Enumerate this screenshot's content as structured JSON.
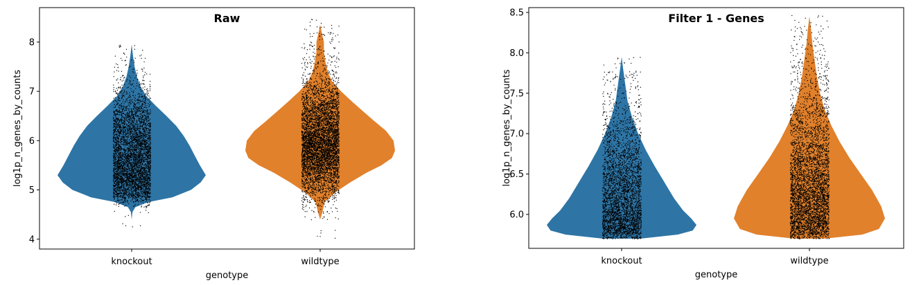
{
  "chart_data": [
    {
      "type": "violin",
      "title": "Raw",
      "xlabel": "genotype",
      "ylabel": "log1p_n_genes_by_counts",
      "categories": [
        "knockout",
        "wildtype"
      ],
      "yticks": [
        "4",
        "5",
        "6",
        "7",
        "8"
      ],
      "ylim": [
        3.8,
        8.7
      ],
      "series": [
        {
          "category": "knockout",
          "color": "#2e75a6",
          "min": 4.4,
          "max": 7.95,
          "mode": 5.25,
          "profile": [
            [
              4.4,
              0.0
            ],
            [
              4.55,
              0.01
            ],
            [
              4.65,
              0.05
            ],
            [
              4.75,
              0.22
            ],
            [
              4.85,
              0.55
            ],
            [
              5.0,
              0.8
            ],
            [
              5.15,
              0.93
            ],
            [
              5.3,
              1.0
            ],
            [
              5.5,
              0.92
            ],
            [
              5.7,
              0.85
            ],
            [
              5.9,
              0.78
            ],
            [
              6.1,
              0.7
            ],
            [
              6.3,
              0.6
            ],
            [
              6.5,
              0.47
            ],
            [
              6.7,
              0.33
            ],
            [
              6.9,
              0.2
            ],
            [
              7.1,
              0.12
            ],
            [
              7.3,
              0.07
            ],
            [
              7.5,
              0.04
            ],
            [
              7.7,
              0.02
            ],
            [
              7.95,
              0.0
            ]
          ],
          "points_range": [
            4.25,
            7.95
          ]
        },
        {
          "category": "wildtype",
          "color": "#e1812c",
          "min": 4.4,
          "max": 8.35,
          "mode": 5.9,
          "profile": [
            [
              4.4,
              0.0
            ],
            [
              4.55,
              0.03
            ],
            [
              4.75,
              0.06
            ],
            [
              4.95,
              0.2
            ],
            [
              5.15,
              0.4
            ],
            [
              5.35,
              0.62
            ],
            [
              5.5,
              0.82
            ],
            [
              5.65,
              0.96
            ],
            [
              5.8,
              1.0
            ],
            [
              6.0,
              0.98
            ],
            [
              6.2,
              0.88
            ],
            [
              6.4,
              0.72
            ],
            [
              6.6,
              0.57
            ],
            [
              6.8,
              0.42
            ],
            [
              7.0,
              0.28
            ],
            [
              7.2,
              0.16
            ],
            [
              7.4,
              0.1
            ],
            [
              7.6,
              0.07
            ],
            [
              7.8,
              0.05
            ],
            [
              8.0,
              0.05
            ],
            [
              8.2,
              0.02
            ],
            [
              8.35,
              0.0
            ]
          ],
          "points_range": [
            3.98,
            8.47
          ]
        }
      ]
    },
    {
      "type": "violin",
      "title": "Filter 1 - Genes",
      "xlabel": "genotype",
      "ylabel": "log1p_n_genes_by_counts",
      "categories": [
        "knockout",
        "wildtype"
      ],
      "yticks": [
        "6.0",
        "6.5",
        "7.0",
        "7.5",
        "8.0",
        "8.5"
      ],
      "ylim": [
        5.58,
        8.56
      ],
      "series": [
        {
          "category": "knockout",
          "color": "#2e75a6",
          "min": 5.7,
          "max": 7.95,
          "mode": 5.85,
          "profile": [
            [
              5.7,
              0.25
            ],
            [
              5.75,
              0.75
            ],
            [
              5.8,
              0.95
            ],
            [
              5.87,
              1.0
            ],
            [
              5.95,
              0.93
            ],
            [
              6.05,
              0.82
            ],
            [
              6.2,
              0.7
            ],
            [
              6.4,
              0.57
            ],
            [
              6.6,
              0.44
            ],
            [
              6.8,
              0.32
            ],
            [
              7.0,
              0.22
            ],
            [
              7.2,
              0.14
            ],
            [
              7.4,
              0.08
            ],
            [
              7.6,
              0.05
            ],
            [
              7.8,
              0.02
            ],
            [
              7.95,
              0.0
            ]
          ],
          "points_range": [
            5.7,
            7.95
          ]
        },
        {
          "category": "wildtype",
          "color": "#e1812c",
          "min": 5.7,
          "max": 8.45,
          "mode": 5.95,
          "profile": [
            [
              5.7,
              0.2
            ],
            [
              5.75,
              0.7
            ],
            [
              5.82,
              0.92
            ],
            [
              5.95,
              1.0
            ],
            [
              6.1,
              0.95
            ],
            [
              6.3,
              0.83
            ],
            [
              6.5,
              0.68
            ],
            [
              6.7,
              0.53
            ],
            [
              6.9,
              0.4
            ],
            [
              7.1,
              0.29
            ],
            [
              7.3,
              0.2
            ],
            [
              7.5,
              0.14
            ],
            [
              7.7,
              0.1
            ],
            [
              7.9,
              0.07
            ],
            [
              8.1,
              0.04
            ],
            [
              8.3,
              0.02
            ],
            [
              8.45,
              0.0
            ]
          ],
          "points_range": [
            5.7,
            8.47
          ]
        }
      ]
    }
  ]
}
